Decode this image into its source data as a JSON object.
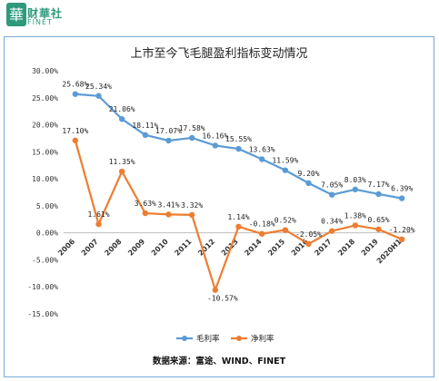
{
  "brand": {
    "name": "财華社",
    "sub": "FINET",
    "color": "#2e9a7c"
  },
  "chart_data": {
    "type": "line",
    "title": "上市至今飞毛腿盈利指标变动情况",
    "source": "数据来源：富途、WIND、FINET",
    "categories": [
      "2006",
      "2007",
      "2008",
      "2009",
      "2010",
      "2011",
      "2012",
      "2013",
      "2014",
      "2015",
      "2016",
      "2017",
      "2018",
      "2019",
      "2020H1"
    ],
    "ylim": [
      -15,
      30
    ],
    "yticks": [
      "30.00%",
      "25.00%",
      "20.00%",
      "15.00%",
      "10.00%",
      "5.00%",
      "0.00%",
      "-5.00%",
      "-10.00%",
      "-15.00%"
    ],
    "legend_position": "bottom",
    "series": [
      {
        "name": "毛利率",
        "color": "#5b9bd5",
        "values": [
          25.68,
          25.34,
          21.06,
          18.11,
          17.07,
          17.58,
          16.16,
          15.55,
          13.63,
          11.59,
          9.2,
          7.05,
          8.03,
          7.17,
          6.39
        ],
        "labels": [
          "25.68%",
          "25.34%",
          "21.06%",
          "18.11%",
          "17.07%",
          "17.58%",
          "16.16%",
          "15.55%",
          "13.63%",
          "11.59%",
          "9.20%",
          "7.05%",
          "8.03%",
          "7.17%",
          "6.39%"
        ]
      },
      {
        "name": "净利率",
        "color": "#ed7d31",
        "values": [
          17.1,
          1.61,
          11.35,
          3.63,
          3.41,
          3.32,
          -10.57,
          1.14,
          -0.18,
          0.52,
          -2.05,
          0.34,
          1.38,
          0.65,
          -1.2
        ],
        "labels": [
          "17.10%",
          "1.61%",
          "11.35%",
          "3.63%",
          "3.41%",
          "3.32%",
          "-10.57%",
          "1.14%",
          "-0.18%",
          "0.52%",
          "-2.05%",
          "0.34%",
          "1.38%",
          "0.65%",
          "-1.20%"
        ]
      }
    ]
  }
}
